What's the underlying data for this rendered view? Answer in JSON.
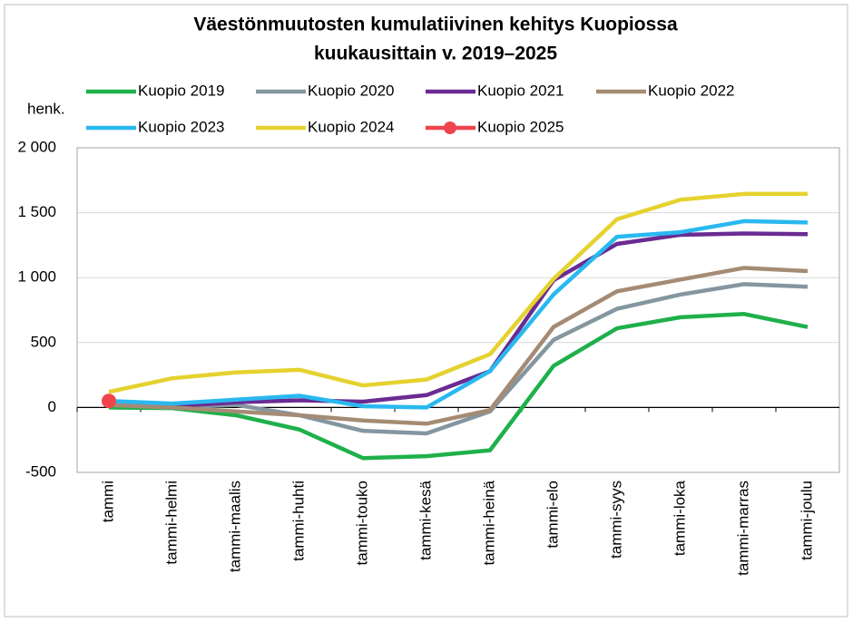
{
  "chart_data": {
    "type": "line",
    "title": [
      "Väestönmuutosten kumulatiivinen kehitys Kuopiossa",
      "kuukausittain v. 2019–2025"
    ],
    "y_label": "henk.",
    "categories": [
      "tammi",
      "tammi-helmi",
      "tammi-maalis",
      "tammi-huhti",
      "tammi-touko",
      "tammi-kesä",
      "tammi-heinä",
      "tammi-elo",
      "tammi-syys",
      "tammi-loka",
      "tammi-marras",
      "tammi-joulu"
    ],
    "series": [
      {
        "name": "Kuopio 2019",
        "color": "#1fb04b",
        "values": [
          0,
          -5,
          -60,
          -170,
          -390,
          -375,
          -330,
          320,
          610,
          695,
          720,
          620
        ]
      },
      {
        "name": "Kuopio 2020",
        "color": "#8496a0",
        "values": [
          20,
          0,
          20,
          -60,
          -180,
          -200,
          -30,
          520,
          760,
          870,
          950,
          930
        ]
      },
      {
        "name": "Kuopio 2021",
        "color": "#6a2b92",
        "values": [
          30,
          10,
          40,
          55,
          45,
          95,
          280,
          980,
          1260,
          1330,
          1340,
          1335
        ]
      },
      {
        "name": "Kuopio 2022",
        "color": "#a58b74",
        "values": [
          20,
          0,
          -30,
          -60,
          -100,
          -125,
          -20,
          620,
          895,
          985,
          1075,
          1050
        ]
      },
      {
        "name": "Kuopio 2023",
        "color": "#2ab8f0",
        "values": [
          50,
          30,
          60,
          90,
          10,
          0,
          280,
          870,
          1315,
          1350,
          1435,
          1425
        ]
      },
      {
        "name": "Kuopio 2024",
        "color": "#e5d22e",
        "values": [
          120,
          225,
          270,
          290,
          170,
          215,
          410,
          990,
          1450,
          1600,
          1645,
          1645
        ]
      },
      {
        "name": "Kuopio 2025",
        "color": "#f0444d",
        "marker": "circle",
        "values": [
          50,
          null,
          null,
          null,
          null,
          null,
          null,
          null,
          null,
          null,
          null,
          null
        ]
      }
    ],
    "ylim": [
      -500,
      2000
    ],
    "yticks": [
      {
        "value": -500,
        "label": "-500"
      },
      0,
      500,
      {
        "value": 1000,
        "label": "1 000"
      },
      {
        "value": 1500,
        "label": "1 500"
      },
      {
        "value": 2000,
        "label": "2 000"
      }
    ],
    "grid": true
  }
}
